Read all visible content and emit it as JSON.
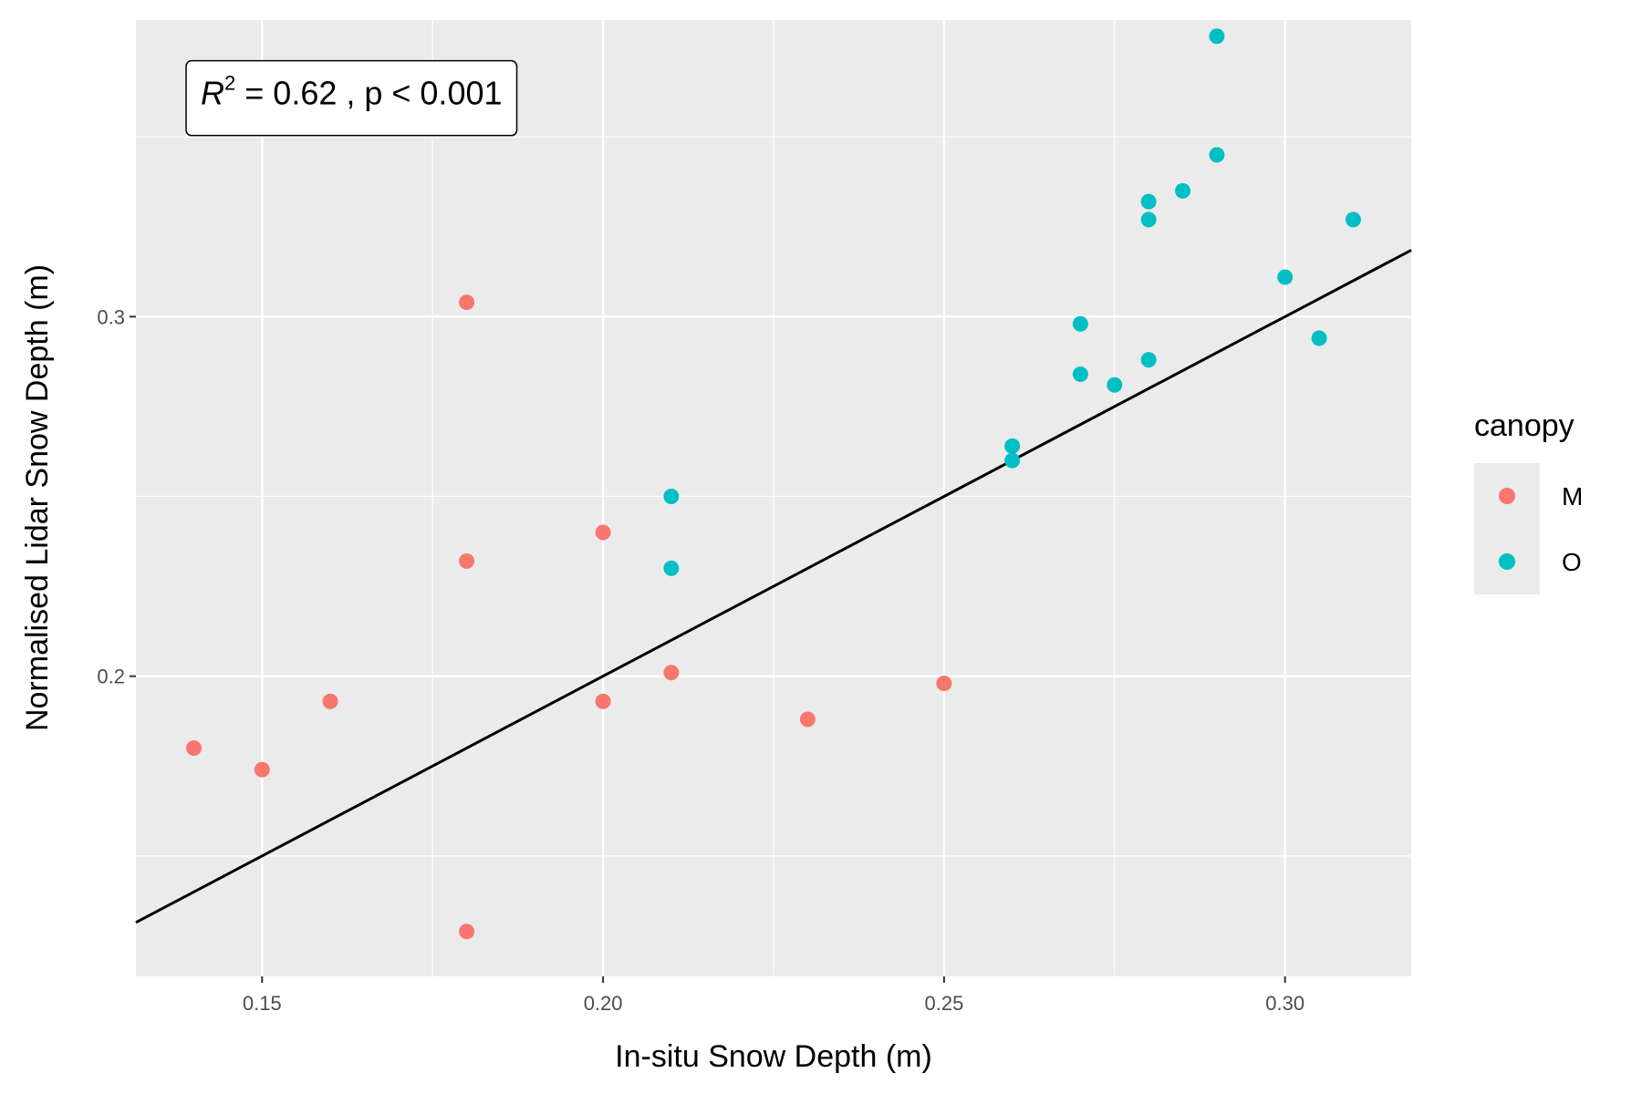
{
  "chart_data": {
    "type": "scatter",
    "title": "",
    "xlabel": "In-situ Snow Depth (m)",
    "ylabel": "Normalised Lidar Snow Depth (m)",
    "xlim": [
      0.1315,
      0.3185
    ],
    "ylim": [
      0.1165,
      0.3825
    ],
    "x_ticks": [
      0.15,
      0.2,
      0.25,
      0.3
    ],
    "x_tick_labels": [
      "0.15",
      "0.20",
      "0.25",
      "0.30"
    ],
    "y_ticks": [
      0.2,
      0.3
    ],
    "y_tick_labels": [
      "0.2",
      "0.3"
    ],
    "grid": true,
    "legend": {
      "title": "canopy",
      "position": "right",
      "entries": [
        {
          "label": "M",
          "color": "#F8766D"
        },
        {
          "label": "O",
          "color": "#00BFC4"
        }
      ]
    },
    "annotation": {
      "r_symbol": "R",
      "r_exponent": "2",
      "text_rest": " = 0.62 ,  p < 0.001",
      "x_data": 0.141,
      "y_data": 0.359
    },
    "reference_line": {
      "slope": 1,
      "intercept": 0,
      "color": "#000000"
    },
    "series": [
      {
        "name": "M",
        "color": "#F8766D",
        "points": [
          [
            0.14,
            0.18
          ],
          [
            0.15,
            0.174
          ],
          [
            0.16,
            0.193
          ],
          [
            0.18,
            0.304
          ],
          [
            0.18,
            0.232
          ],
          [
            0.18,
            0.129
          ],
          [
            0.2,
            0.24
          ],
          [
            0.2,
            0.193
          ],
          [
            0.21,
            0.201
          ],
          [
            0.23,
            0.188
          ],
          [
            0.25,
            0.198
          ]
        ]
      },
      {
        "name": "O",
        "color": "#00BFC4",
        "points": [
          [
            0.21,
            0.25
          ],
          [
            0.21,
            0.23
          ],
          [
            0.26,
            0.264
          ],
          [
            0.26,
            0.26
          ],
          [
            0.27,
            0.298
          ],
          [
            0.27,
            0.284
          ],
          [
            0.275,
            0.281
          ],
          [
            0.28,
            0.332
          ],
          [
            0.28,
            0.327
          ],
          [
            0.28,
            0.288
          ],
          [
            0.285,
            0.335
          ],
          [
            0.29,
            0.378
          ],
          [
            0.29,
            0.345
          ],
          [
            0.3,
            0.311
          ],
          [
            0.305,
            0.294
          ],
          [
            0.31,
            0.327
          ]
        ]
      }
    ]
  }
}
